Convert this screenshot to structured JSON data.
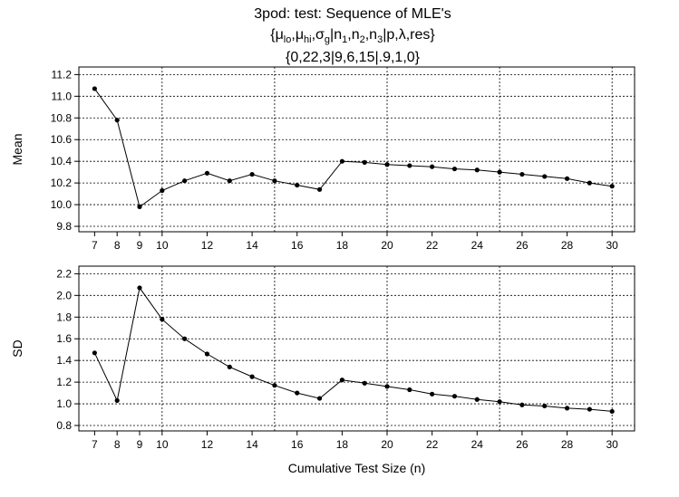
{
  "title": {
    "line1": "3pod: test: Sequence of MLE's",
    "line2": {
      "open": "{",
      "mu": "μ",
      "lo": "lo",
      "hi": "hi",
      "sigma": "σ",
      "g": "g",
      "n": "n",
      "i1": "1",
      "i2": "2",
      "i3": "3",
      "comma": ",",
      "bar": "|",
      "p": "p",
      "lambda": "λ",
      "res": "res",
      "close": "}"
    },
    "line3": "{0,22,3|9,6,15|.9,1,0}"
  },
  "chart_data": [
    {
      "type": "line",
      "ylabel": "Mean",
      "xlabel": "",
      "x": [
        7,
        8,
        9,
        10,
        11,
        12,
        13,
        14,
        15,
        16,
        17,
        18,
        19,
        20,
        21,
        22,
        23,
        24,
        25,
        26,
        27,
        28,
        29,
        30
      ],
      "y": [
        11.07,
        10.78,
        9.98,
        10.13,
        10.22,
        10.29,
        10.22,
        10.28,
        10.22,
        10.18,
        10.14,
        10.4,
        10.39,
        10.37,
        10.36,
        10.35,
        10.33,
        10.32,
        10.3,
        10.28,
        10.26,
        10.24,
        10.2,
        10.17
      ],
      "xticks": [
        "7",
        "8",
        "9",
        "10",
        "12",
        "14",
        "16",
        "18",
        "20",
        "22",
        "24",
        "26",
        "28",
        "30"
      ],
      "yticks": [
        "9.8",
        "10.0",
        "10.2",
        "10.4",
        "10.6",
        "10.8",
        "11.0",
        "11.2"
      ],
      "xgrid": [
        10,
        15,
        20,
        25,
        30
      ],
      "ygrid": [
        9.8,
        10.0,
        10.2,
        10.4,
        10.6,
        10.8,
        11.0,
        11.2
      ],
      "xlim": [
        6.3,
        31.0
      ],
      "ylim": [
        9.75,
        11.27
      ],
      "grid": true
    },
    {
      "type": "line",
      "ylabel": "SD",
      "xlabel": "Cumulative Test Size (n)",
      "x": [
        7,
        8,
        9,
        10,
        11,
        12,
        13,
        14,
        15,
        16,
        17,
        18,
        19,
        20,
        21,
        22,
        23,
        24,
        25,
        26,
        27,
        28,
        29,
        30
      ],
      "y": [
        1.47,
        1.03,
        2.07,
        1.78,
        1.6,
        1.46,
        1.34,
        1.25,
        1.17,
        1.1,
        1.05,
        1.22,
        1.19,
        1.16,
        1.13,
        1.09,
        1.07,
        1.04,
        1.02,
        0.99,
        0.98,
        0.96,
        0.95,
        0.93
      ],
      "xticks": [
        "7",
        "8",
        "9",
        "10",
        "12",
        "14",
        "16",
        "18",
        "20",
        "22",
        "24",
        "26",
        "28",
        "30"
      ],
      "yticks": [
        "0.8",
        "1.0",
        "1.2",
        "1.4",
        "1.6",
        "1.8",
        "2.0",
        "2.2"
      ],
      "xgrid": [
        10,
        15,
        20,
        25,
        30
      ],
      "ygrid": [
        0.8,
        1.0,
        1.2,
        1.4,
        1.6,
        1.8,
        2.0,
        2.2
      ],
      "xlim": [
        6.3,
        31.0
      ],
      "ylim": [
        0.75,
        2.27
      ],
      "grid": true
    }
  ]
}
